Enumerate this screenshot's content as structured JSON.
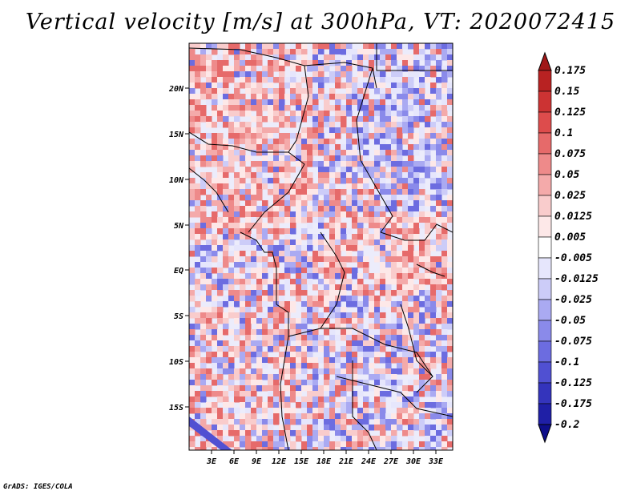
{
  "title": "Vertical velocity [m/s] at 300hPa, VT: 2020072415",
  "credit": "GrADS: IGES/COLA",
  "map": {
    "lat_labels": [
      "20N",
      "15N",
      "10N",
      "5N",
      "EQ",
      "5S",
      "10S",
      "15S"
    ],
    "lon_labels": [
      "3E",
      "6E",
      "9E",
      "12E",
      "15E",
      "18E",
      "21E",
      "24E",
      "27E",
      "30E",
      "33E"
    ],
    "colors": {
      "positive": "#e07070",
      "negative": "#7a7ae0",
      "neutral": "#ffffff",
      "border": "#000000"
    }
  },
  "colorbar": {
    "levels": [
      "0.175",
      "0.15",
      "0.125",
      "0.1",
      "0.075",
      "0.05",
      "0.025",
      "0.0125",
      "0.005",
      "-0.005",
      "-0.0125",
      "-0.025",
      "-0.05",
      "-0.075",
      "-0.1",
      "-0.125",
      "-0.175",
      "-0.2"
    ],
    "colors": [
      "#a01818",
      "#b82222",
      "#cc3333",
      "#dd4c4c",
      "#e66a6a",
      "#ee8a8a",
      "#f4aaaa",
      "#f9cccc",
      "#fde8e8",
      "#ffffff",
      "#e6e6fc",
      "#ccccf8",
      "#aaaaf2",
      "#8a8aea",
      "#6c6ce0",
      "#5050d2",
      "#3434bc",
      "#1f1fa6",
      "#0e0e8a"
    ]
  }
}
